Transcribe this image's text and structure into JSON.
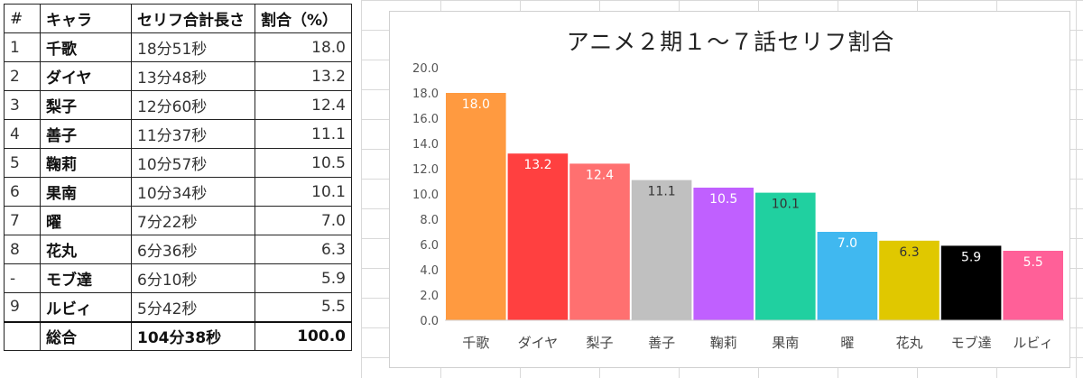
{
  "table": {
    "headers": [
      "#",
      "キャラ",
      "セリフ合計長さ",
      "割合（%）"
    ],
    "rows": [
      {
        "no": "1",
        "name": "千歌",
        "length": "18分51秒",
        "pct": "18.0"
      },
      {
        "no": "2",
        "name": "ダイヤ",
        "length": "13分48秒",
        "pct": "13.2"
      },
      {
        "no": "3",
        "name": "梨子",
        "length": "12分60秒",
        "pct": "12.4"
      },
      {
        "no": "4",
        "name": "善子",
        "length": "11分37秒",
        "pct": "11.1"
      },
      {
        "no": "5",
        "name": "鞠莉",
        "length": "10分57秒",
        "pct": "10.5"
      },
      {
        "no": "6",
        "name": "果南",
        "length": "10分34秒",
        "pct": "10.1"
      },
      {
        "no": "7",
        "name": "曜",
        "length": "7分22秒",
        "pct": "7.0"
      },
      {
        "no": "8",
        "name": "花丸",
        "length": "6分36秒",
        "pct": "6.3"
      },
      {
        "no": "-",
        "name": "モブ達",
        "length": "6分10秒",
        "pct": "5.9"
      },
      {
        "no": "9",
        "name": "ルビィ",
        "length": "5分42秒",
        "pct": "5.5"
      }
    ],
    "total": {
      "no": "",
      "name": "総合",
      "length": "104分38秒",
      "pct": "100.0"
    }
  },
  "chart_data": {
    "type": "bar",
    "title": "アニメ２期１～７話セリフ割合",
    "categories": [
      "千歌",
      "ダイヤ",
      "梨子",
      "善子",
      "鞠莉",
      "果南",
      "曜",
      "花丸",
      "モブ達",
      "ルビィ"
    ],
    "values": [
      18.0,
      13.2,
      12.4,
      11.1,
      10.5,
      10.1,
      7.0,
      6.3,
      5.9,
      5.5
    ],
    "colors": [
      "#ff9a40",
      "#ff4040",
      "#ff7070",
      "#c0c0c0",
      "#c060ff",
      "#20d0a0",
      "#40b8f0",
      "#e0c800",
      "#000000",
      "#ff6098"
    ],
    "label_colors": [
      "#ffffff",
      "#ffffff",
      "#ffffff",
      "#333333",
      "#ffffff",
      "#333333",
      "#ffffff",
      "#333333",
      "#ffffff",
      "#ffffff"
    ],
    "ylim": [
      0,
      20
    ],
    "yticks": [
      "0.0",
      "2.0",
      "4.0",
      "6.0",
      "8.0",
      "10.0",
      "12.0",
      "14.0",
      "16.0",
      "18.0",
      "20.0"
    ],
    "grid": false,
    "legend": "none"
  }
}
